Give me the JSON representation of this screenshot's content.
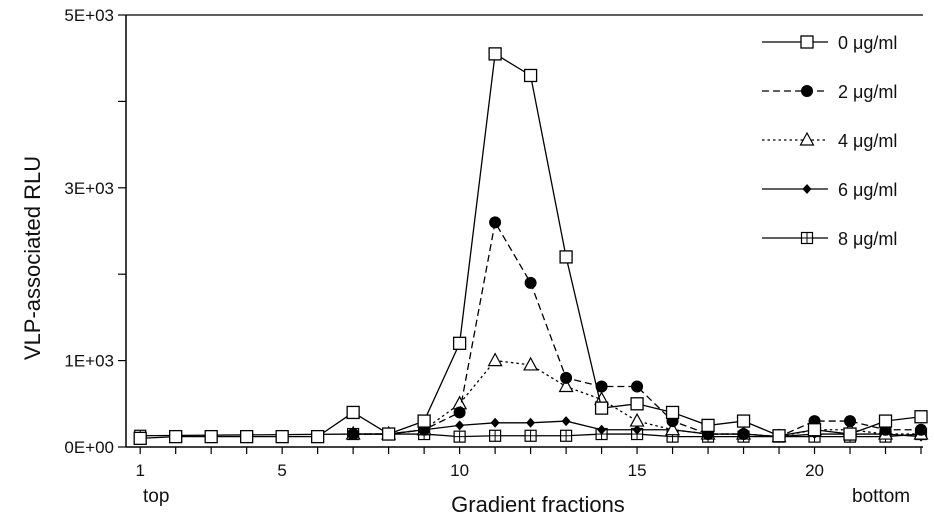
{
  "chart_data": {
    "type": "line",
    "xlabel": "Gradient fractions",
    "ylabel": "VLP-associated RLU",
    "xlim": [
      0.6,
      23
    ],
    "ylim": [
      0,
      5000
    ],
    "x_ticks": [
      {
        "value": 1,
        "label": "1"
      },
      {
        "value": 5,
        "label": "5"
      },
      {
        "value": 10,
        "label": "10"
      },
      {
        "value": 15,
        "label": "15"
      },
      {
        "value": 20,
        "label": "20"
      }
    ],
    "y_ticks": [
      {
        "value": 0,
        "label": "0E+00"
      },
      {
        "value": 1000,
        "label": "1E+03"
      },
      {
        "value": 3000,
        "label": "3E+03"
      },
      {
        "value": 5000,
        "label": "5E+03"
      }
    ],
    "x_end_labels": {
      "left": "top",
      "right": "bottom"
    },
    "legend_position": "top-right",
    "grid": false,
    "series": [
      {
        "name": "0 μg/ml",
        "dash": "solid",
        "marker": "open-square",
        "x": [
          1,
          2,
          3,
          4,
          5,
          6,
          7,
          8,
          9,
          10,
          11,
          12,
          13,
          14,
          15,
          16,
          17,
          18,
          19,
          20,
          21,
          22,
          23
        ],
        "y": [
          100,
          120,
          120,
          120,
          120,
          120,
          400,
          150,
          300,
          1200,
          4550,
          4300,
          2200,
          450,
          500,
          400,
          250,
          300,
          130,
          200,
          150,
          300,
          350
        ]
      },
      {
        "name": "2 μg/ml",
        "dash": "dashed",
        "marker": "filled-circle",
        "x": [
          7,
          8,
          9,
          10,
          11,
          12,
          13,
          14,
          15,
          16,
          17,
          18,
          19,
          20,
          21,
          22,
          23
        ],
        "y": [
          150,
          150,
          200,
          400,
          2600,
          1900,
          800,
          700,
          700,
          300,
          150,
          150,
          120,
          300,
          300,
          200,
          200
        ]
      },
      {
        "name": "4 μg/ml",
        "dash": "dotted",
        "marker": "open-triangle",
        "x": [
          7,
          8,
          9,
          10,
          11,
          12,
          13,
          14,
          15,
          16,
          17,
          18,
          19,
          20,
          21,
          22,
          23
        ],
        "y": [
          150,
          150,
          200,
          500,
          1000,
          950,
          700,
          550,
          300,
          200,
          150,
          150,
          120,
          200,
          200,
          150,
          150
        ]
      },
      {
        "name": "6 μg/ml",
        "dash": "solid",
        "marker": "filled-diamond",
        "x": [
          7,
          8,
          9,
          10,
          11,
          12,
          13,
          14,
          15,
          16,
          17,
          18,
          19,
          20,
          21,
          22,
          23
        ],
        "y": [
          150,
          150,
          200,
          250,
          280,
          280,
          300,
          200,
          200,
          200,
          150,
          150,
          120,
          150,
          150,
          150,
          120
        ]
      },
      {
        "name": "8 μg/ml",
        "dash": "solid",
        "marker": "crossed-square",
        "x": [
          1,
          7,
          8,
          9,
          10,
          11,
          12,
          13,
          14,
          15,
          16,
          17,
          18,
          19,
          20,
          21,
          22,
          23
        ],
        "y": [
          130,
          150,
          150,
          150,
          120,
          130,
          130,
          130,
          150,
          150,
          120,
          120,
          120,
          120,
          120,
          120,
          120,
          150
        ]
      }
    ]
  }
}
